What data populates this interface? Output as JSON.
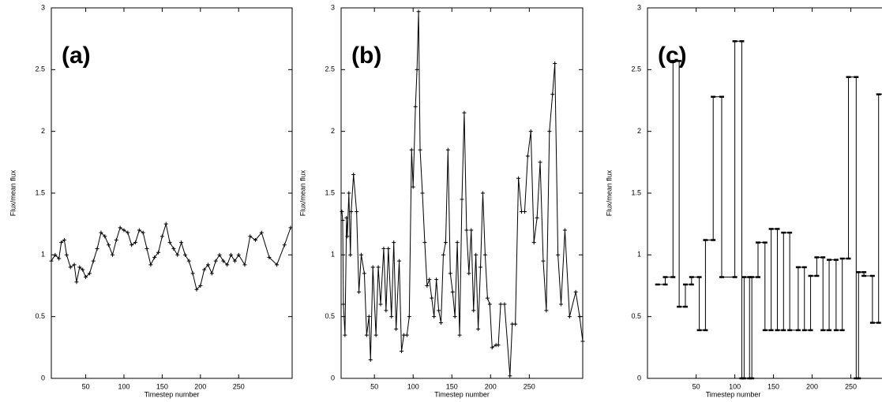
{
  "chart_data": [
    {
      "type": "line",
      "label": "(a)",
      "ylabel": "Flux/mean flux",
      "xlabel": "Timestep number",
      "color": "#000000",
      "marker": "plus",
      "xlim": [
        5,
        320
      ],
      "ylim": [
        0,
        3
      ],
      "xticks": [
        50,
        100,
        150,
        200,
        250
      ],
      "yticks": [
        0,
        0.5,
        1,
        1.5,
        2,
        2.5,
        3
      ],
      "x": [
        5,
        10,
        15,
        18,
        22,
        25,
        30,
        35,
        38,
        42,
        46,
        50,
        55,
        60,
        65,
        70,
        75,
        80,
        85,
        90,
        95,
        100,
        105,
        110,
        115,
        120,
        125,
        130,
        135,
        140,
        145,
        150,
        155,
        160,
        165,
        170,
        175,
        180,
        185,
        190,
        195,
        200,
        205,
        210,
        215,
        220,
        225,
        230,
        235,
        240,
        245,
        250,
        258,
        265,
        272,
        280,
        290,
        300,
        310,
        318
      ],
      "values": [
        0.95,
        1.0,
        0.97,
        1.1,
        1.12,
        1.0,
        0.9,
        0.92,
        0.78,
        0.9,
        0.88,
        0.82,
        0.85,
        0.95,
        1.05,
        1.18,
        1.15,
        1.08,
        1.0,
        1.12,
        1.22,
        1.2,
        1.18,
        1.08,
        1.1,
        1.2,
        1.18,
        1.05,
        0.92,
        0.98,
        1.02,
        1.15,
        1.25,
        1.1,
        1.05,
        1.0,
        1.1,
        1.0,
        0.95,
        0.85,
        0.72,
        0.75,
        0.88,
        0.92,
        0.85,
        0.95,
        1.0,
        0.95,
        0.92,
        1.0,
        0.95,
        1.0,
        0.92,
        1.15,
        1.12,
        1.18,
        0.98,
        0.92,
        1.08,
        1.22
      ]
    },
    {
      "type": "line",
      "label": "(b)",
      "ylabel": "Flux/mean flux",
      "xlabel": "Timestep number",
      "color": "#000000",
      "marker": "plus",
      "xlim": [
        7,
        319
      ],
      "ylim": [
        0,
        3
      ],
      "xticks": [
        50,
        100,
        150,
        200,
        250
      ],
      "yticks": [
        0,
        0.5,
        1,
        1.5,
        2,
        2.5,
        3
      ],
      "x": [
        8,
        9,
        10,
        12,
        14,
        15,
        17,
        19,
        20,
        23,
        27,
        30,
        33,
        37,
        40,
        43,
        45,
        48,
        52,
        55,
        58,
        62,
        65,
        68,
        72,
        75,
        78,
        82,
        85,
        88,
        92,
        95,
        98,
        100,
        103,
        105,
        107,
        109,
        112,
        115,
        118,
        121,
        124,
        127,
        130,
        133,
        136,
        139,
        142,
        145,
        148,
        151,
        154,
        157,
        160,
        163,
        166,
        169,
        172,
        175,
        178,
        181,
        184,
        187,
        190,
        193,
        196,
        199,
        202,
        207,
        210,
        213,
        218,
        225,
        228,
        232,
        236,
        240,
        244,
        248,
        252,
        256,
        260,
        264,
        268,
        272,
        276,
        280,
        283,
        287,
        291,
        296,
        302,
        310,
        315,
        319
      ],
      "values": [
        1.35,
        1.28,
        0.6,
        0.35,
        1.3,
        1.15,
        1.5,
        1.0,
        1.35,
        1.65,
        1.35,
        0.7,
        1.0,
        0.85,
        0.35,
        0.5,
        0.15,
        0.9,
        0.35,
        0.9,
        0.6,
        1.05,
        0.55,
        1.05,
        0.5,
        1.1,
        0.4,
        0.95,
        0.22,
        0.35,
        0.35,
        0.5,
        1.85,
        1.55,
        2.2,
        2.5,
        2.97,
        1.85,
        1.5,
        1.1,
        0.75,
        0.8,
        0.65,
        0.5,
        0.8,
        0.55,
        0.45,
        1.0,
        1.1,
        1.85,
        0.85,
        0.7,
        0.5,
        1.1,
        0.35,
        1.45,
        2.15,
        1.2,
        0.85,
        1.2,
        0.55,
        1.0,
        0.4,
        0.9,
        1.5,
        1.0,
        0.65,
        0.6,
        0.25,
        0.27,
        0.27,
        0.6,
        0.6,
        0.02,
        0.44,
        0.44,
        1.62,
        1.35,
        1.35,
        1.8,
        2.0,
        1.1,
        1.3,
        1.75,
        0.95,
        0.55,
        2.0,
        2.3,
        2.55,
        1.0,
        0.6,
        1.2,
        0.5,
        0.7,
        0.5,
        0.3
      ]
    },
    {
      "type": "line",
      "label": "(c)",
      "ylabel": "Flux/mean flux",
      "xlabel": "Timestep number",
      "color": "#000000",
      "marker": "dash",
      "xlim": [
        -13,
        320
      ],
      "ylim": [
        0,
        3
      ],
      "xticks": [
        50,
        100,
        150,
        200,
        250
      ],
      "yticks": [
        0,
        0.5,
        1,
        1.5,
        2,
        2.5,
        3
      ],
      "x": [
        0,
        10,
        10,
        20,
        20,
        28,
        28,
        36,
        36,
        44,
        44,
        54,
        54,
        62,
        62,
        72,
        72,
        83,
        83,
        100,
        100,
        109,
        109,
        112,
        112,
        119,
        119,
        122,
        122,
        130,
        130,
        139,
        139,
        147,
        147,
        155,
        155,
        163,
        163,
        171,
        171,
        182,
        182,
        190,
        190,
        198,
        198,
        206,
        206,
        214,
        214,
        222,
        222,
        231,
        231,
        239,
        239,
        247,
        247,
        257,
        257,
        260,
        260,
        267,
        267,
        278,
        278,
        286,
        286,
        300
      ],
      "values": [
        0.76,
        0.76,
        0.82,
        0.82,
        2.57,
        2.57,
        0.58,
        0.58,
        0.76,
        0.76,
        0.82,
        0.82,
        0.39,
        0.39,
        1.12,
        1.12,
        2.28,
        2.28,
        0.82,
        0.82,
        2.73,
        2.73,
        0,
        0,
        0.82,
        0.82,
        0,
        0,
        0.82,
        0.82,
        1.1,
        1.1,
        0.39,
        0.39,
        1.21,
        1.21,
        0.39,
        0.39,
        1.18,
        1.18,
        0.39,
        0.39,
        0.9,
        0.9,
        0.39,
        0.39,
        0.83,
        0.83,
        0.98,
        0.98,
        0.39,
        0.39,
        0.96,
        0.96,
        0.39,
        0.39,
        0.97,
        0.97,
        2.44,
        2.44,
        0,
        0,
        0.86,
        0.86,
        0.83,
        0.83,
        0.45,
        0.45,
        2.3,
        2.3
      ]
    }
  ]
}
